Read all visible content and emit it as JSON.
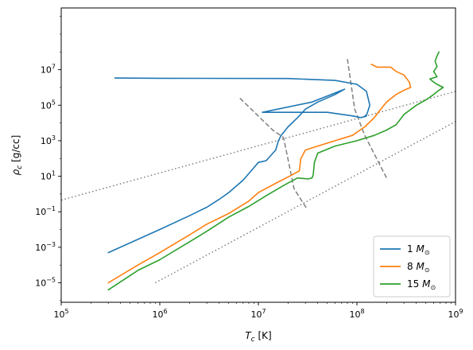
{
  "chart_data": {
    "type": "line",
    "xscale": "log",
    "yscale": "log",
    "xlim": [
      100000,
      1000000000
    ],
    "ylim": [
      8e-07,
      30000000000
    ],
    "xlabel_main": "T",
    "xlabel_sub": "c",
    "xlabel_unit": " [K]",
    "ylabel_main": "ρ",
    "ylabel_sub": "c",
    "ylabel_unit": " [g/cc]",
    "x_ticks": [
      {
        "value": 100000,
        "base": "10",
        "exp": "5"
      },
      {
        "value": 1000000,
        "base": "10",
        "exp": "6"
      },
      {
        "value": 10000000,
        "base": "10",
        "exp": "7"
      },
      {
        "value": 100000000,
        "base": "10",
        "exp": "8"
      },
      {
        "value": 1000000000,
        "base": "10",
        "exp": "9"
      }
    ],
    "y_ticks": [
      {
        "value": 1e-05,
        "base": "10",
        "exp": "−5"
      },
      {
        "value": 0.001,
        "base": "10",
        "exp": "−3"
      },
      {
        "value": 0.1,
        "base": "10",
        "exp": "−1"
      },
      {
        "value": 10,
        "base": "10",
        "exp": "1"
      },
      {
        "value": 1000,
        "base": "10",
        "exp": "3"
      },
      {
        "value": 100000,
        "base": "10",
        "exp": "5"
      },
      {
        "value": 10000000,
        "base": "10",
        "exp": "7"
      }
    ],
    "legend_position": "lower-right",
    "series": [
      {
        "name": "1",
        "name_unit": "M",
        "name_sub": "⊙",
        "color": "#1f77b4",
        "points": [
          [
            300000,
            0.0005
          ],
          [
            1000000,
            0.01
          ],
          [
            2000000,
            0.06
          ],
          [
            3000000,
            0.18
          ],
          [
            4000000,
            0.5
          ],
          [
            5000000,
            1.2
          ],
          [
            7000000,
            6
          ],
          [
            9000000,
            30
          ],
          [
            10000000,
            60
          ],
          [
            12000000,
            75
          ],
          [
            15000000,
            300
          ],
          [
            16000000,
            1000
          ],
          [
            17000000,
            2000
          ],
          [
            20000000,
            6000
          ],
          [
            25000000,
            20000
          ],
          [
            30000000,
            60000
          ],
          [
            40000000,
            150000
          ],
          [
            60000000,
            400000
          ],
          [
            75000000,
            800000
          ],
          [
            35000000,
            150000
          ],
          [
            11000000,
            40000
          ],
          [
            50000000,
            40000
          ],
          [
            90000000,
            25000
          ],
          [
            110000000,
            20000
          ],
          [
            125000000,
            25000
          ],
          [
            118000000,
            22000
          ],
          [
            126000000,
            30000
          ],
          [
            135000000,
            100000
          ],
          [
            125000000,
            600000
          ],
          [
            100000000,
            1500000
          ],
          [
            60000000,
            2500000
          ],
          [
            20000000,
            3200000
          ],
          [
            1000000,
            3300000
          ],
          [
            350000,
            3400000
          ]
        ]
      },
      {
        "name": "8",
        "name_unit": "M",
        "name_sub": "⊙",
        "color": "#ff7f0e",
        "points": [
          [
            300000,
            1e-05
          ],
          [
            600000,
            0.0001
          ],
          [
            1000000,
            0.0005
          ],
          [
            2000000,
            0.005
          ],
          [
            3000000,
            0.02
          ],
          [
            5000000,
            0.08
          ],
          [
            8000000,
            0.4
          ],
          [
            10000000,
            1.2
          ],
          [
            15000000,
            4
          ],
          [
            22000000,
            12
          ],
          [
            26000000,
            20
          ],
          [
            27000000,
            100
          ],
          [
            30000000,
            300
          ],
          [
            40000000,
            500
          ],
          [
            60000000,
            1000
          ],
          [
            90000000,
            2000
          ],
          [
            120000000,
            6000
          ],
          [
            150000000,
            20000
          ],
          [
            170000000,
            50000
          ],
          [
            200000000,
            150000
          ],
          [
            250000000,
            400000
          ],
          [
            300000000,
            700000
          ],
          [
            350000000,
            1000000
          ],
          [
            340000000,
            2000000
          ],
          [
            300000000,
            5000000
          ],
          [
            250000000,
            8000000
          ],
          [
            220000000,
            14000000
          ],
          [
            160000000,
            14000000
          ],
          [
            140000000,
            20000000
          ]
        ]
      },
      {
        "name": "15",
        "name_unit": "M",
        "name_sub": "⊙",
        "color": "#2ca02c",
        "points": [
          [
            300000,
            4e-06
          ],
          [
            600000,
            5e-05
          ],
          [
            1000000,
            0.0002
          ],
          [
            2000000,
            0.002
          ],
          [
            3000000,
            0.008
          ],
          [
            5000000,
            0.05
          ],
          [
            8000000,
            0.2
          ],
          [
            12000000,
            0.8
          ],
          [
            18000000,
            3
          ],
          [
            25000000,
            8
          ],
          [
            32000000,
            7
          ],
          [
            35000000,
            8
          ],
          [
            36000000,
            12
          ],
          [
            37000000,
            60
          ],
          [
            40000000,
            200
          ],
          [
            60000000,
            500
          ],
          [
            100000000,
            1000
          ],
          [
            150000000,
            2000
          ],
          [
            200000000,
            4000
          ],
          [
            250000000,
            8000
          ],
          [
            300000000,
            30000
          ],
          [
            400000000,
            100000
          ],
          [
            500000000,
            200000
          ],
          [
            600000000,
            400000
          ],
          [
            680000000,
            700000
          ],
          [
            750000000,
            1000000
          ],
          [
            650000000,
            1500000
          ],
          [
            600000000,
            2000000
          ],
          [
            550000000,
            3000000
          ],
          [
            650000000,
            4000000
          ],
          [
            600000000,
            8000000
          ],
          [
            650000000,
            15000000
          ],
          [
            620000000,
            30000000
          ],
          [
            650000000,
            60000000
          ],
          [
            680000000,
            100000000
          ]
        ]
      }
    ],
    "reference_lines": [
      {
        "style": "dotted",
        "color": "#7f7f7f",
        "points": [
          [
            100000,
            0.45
          ],
          [
            1000000000,
            600000
          ]
        ]
      },
      {
        "style": "dotted",
        "color": "#7f7f7f",
        "points": [
          [
            900000,
            1e-05
          ],
          [
            1000000000,
            12000
          ]
        ]
      },
      {
        "style": "dashed",
        "color": "#7f7f7f",
        "points": [
          [
            6500000,
            250000
          ],
          [
            14000000,
            4000
          ],
          [
            18000000,
            1500
          ],
          [
            23000000,
            2
          ],
          [
            31000000,
            0.15
          ]
        ]
      },
      {
        "style": "dashed",
        "color": "#7f7f7f",
        "points": [
          [
            80000000,
            40000000
          ],
          [
            95000000,
            60000
          ],
          [
            120000000,
            2000
          ],
          [
            200000000,
            8
          ]
        ]
      }
    ]
  }
}
